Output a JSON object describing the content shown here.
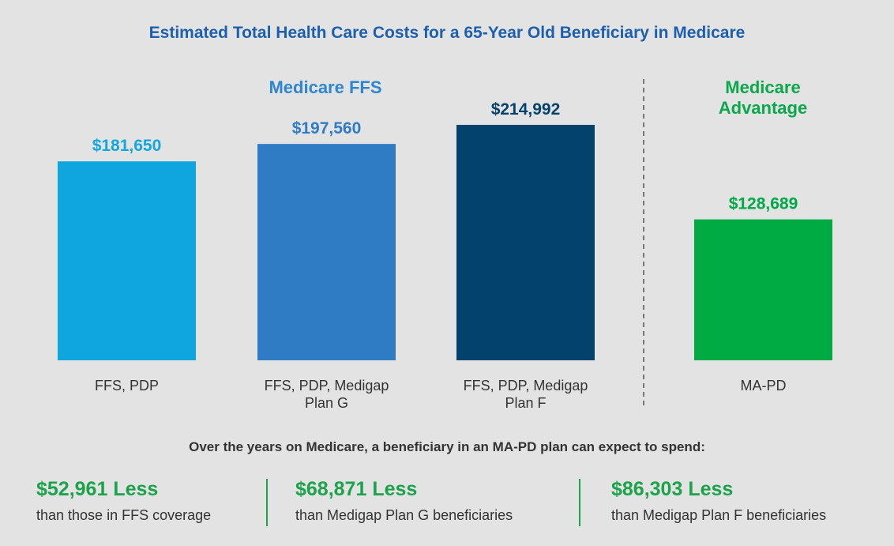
{
  "title": "Estimated Total Health Care Costs for a 65-Year Old Beneficiary in Medicare",
  "colors": {
    "title": "#1d5fae",
    "ffs_group_label": "#2e86d2",
    "ma_group_label": "#0aa84a",
    "savings": "#1aa34a"
  },
  "chart_data": {
    "type": "bar",
    "title": "Estimated Total Health Care Costs for a 65-Year Old Beneficiary in Medicare",
    "groups": [
      {
        "label_lines": [
          "Medicare FFS"
        ],
        "color": "#2e86d2"
      },
      {
        "label_lines": [
          "Medicare",
          "Advantage"
        ],
        "color": "#0aa84a"
      }
    ],
    "categories": [
      "FFS, PDP",
      "FFS, PDP, Medigap Plan G",
      "FFS, PDP, Medigap Plan F",
      "MA-PD"
    ],
    "category_label_lines": [
      [
        "FFS, PDP"
      ],
      [
        "FFS, PDP, Medigap",
        "Plan G"
      ],
      [
        "FFS, PDP, Medigap",
        "Plan F"
      ],
      [
        "MA-PD"
      ]
    ],
    "values": [
      181650,
      197560,
      214992,
      128689
    ],
    "value_labels": [
      "$181,650",
      "$197,560",
      "$214,992",
      "$128,689"
    ],
    "bar_colors": [
      "#0fa5df",
      "#2f7cc4",
      "#03426c",
      "#00ab44"
    ],
    "label_colors": [
      "#13a6df",
      "#2f7cc4",
      "#03426c",
      "#00a846"
    ],
    "group_membership": [
      0,
      0,
      0,
      1
    ],
    "ylim": [
      0,
      214992
    ],
    "grid": false,
    "divider": "dashed line between FFS and MA groups"
  },
  "summary": {
    "heading": "Over the years on Medicare, a beneficiary in an MA-PD plan can expect to spend:",
    "items": [
      {
        "amount": "$52,961 Less",
        "desc": "than those in FFS coverage"
      },
      {
        "amount": "$68,871 Less",
        "desc": "than Medigap Plan G beneficiaries"
      },
      {
        "amount": "$86,303 Less",
        "desc": "than Medigap Plan F beneficiaries"
      }
    ]
  }
}
